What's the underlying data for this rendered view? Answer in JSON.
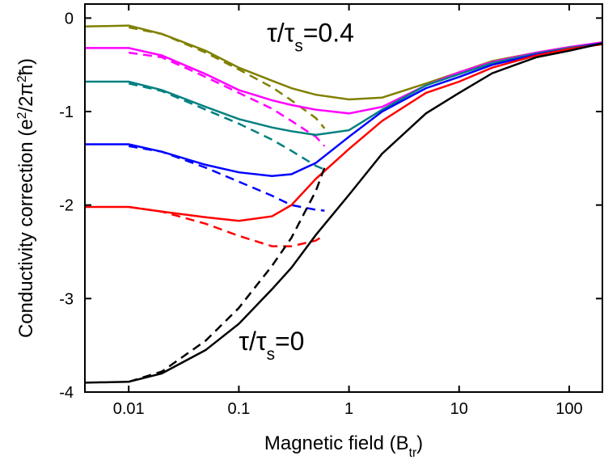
{
  "chart_data": {
    "type": "line",
    "xlabel": [
      {
        "text": "Magnetic field (B"
      },
      {
        "text": "tr",
        "sub": true
      },
      {
        "text": ")"
      }
    ],
    "ylabel": [
      {
        "text": "Conductivity correction (e"
      },
      {
        "text": "2",
        "sup": true
      },
      {
        "text": "/2π"
      },
      {
        "text": "2",
        "sup": true
      },
      {
        "text": "ħ)"
      }
    ],
    "annotations": [
      {
        "parts": [
          {
            "text": "τ/τ"
          },
          {
            "text": "s",
            "sub": true
          },
          {
            "text": "=0.4"
          }
        ],
        "x": 0.18,
        "y": -0.25
      },
      {
        "parts": [
          {
            "text": "τ/τ"
          },
          {
            "text": "s",
            "sub": true
          },
          {
            "text": "=0"
          }
        ],
        "x": 0.1,
        "y": -3.55
      }
    ],
    "xscale": "log",
    "xlim": [
      0.004,
      200
    ],
    "ylim": [
      -4,
      0.15
    ],
    "xticks": [
      0.01,
      0.1,
      1,
      10,
      100
    ],
    "yticks": [
      0,
      -1,
      -2,
      -3,
      -4
    ],
    "series": [
      {
        "color": "#808000",
        "dash": false,
        "x": [
          0.004,
          0.01,
          0.02,
          0.05,
          0.1,
          0.2,
          0.3,
          0.5,
          1,
          2,
          5,
          10,
          20,
          50,
          100,
          200
        ],
        "values": [
          -0.09,
          -0.08,
          -0.17,
          -0.35,
          -0.53,
          -0.67,
          -0.75,
          -0.82,
          -0.87,
          -0.85,
          -0.7,
          -0.58,
          -0.46,
          -0.37,
          -0.31,
          -0.26
        ]
      },
      {
        "color": "#808000",
        "dash": true,
        "x": [
          0.01,
          0.02,
          0.05,
          0.1,
          0.2,
          0.3,
          0.5,
          0.6
        ],
        "values": [
          -0.1,
          -0.17,
          -0.37,
          -0.55,
          -0.74,
          -0.88,
          -1.07,
          -1.18
        ]
      },
      {
        "color": "#ff00ff",
        "dash": false,
        "x": [
          0.004,
          0.01,
          0.02,
          0.05,
          0.1,
          0.2,
          0.3,
          0.5,
          1,
          2,
          5,
          10,
          20,
          50,
          100,
          200
        ],
        "values": [
          -0.32,
          -0.32,
          -0.4,
          -0.6,
          -0.77,
          -0.88,
          -0.93,
          -0.98,
          -1.02,
          -0.95,
          -0.72,
          -0.58,
          -0.47,
          -0.37,
          -0.31,
          -0.26
        ]
      },
      {
        "color": "#ff00ff",
        "dash": true,
        "x": [
          0.01,
          0.02,
          0.05,
          0.1,
          0.2,
          0.3,
          0.5,
          0.6
        ],
        "values": [
          -0.37,
          -0.42,
          -0.63,
          -0.8,
          -0.97,
          -1.1,
          -1.27,
          -1.37
        ]
      },
      {
        "color": "#008080",
        "dash": false,
        "x": [
          0.004,
          0.01,
          0.02,
          0.05,
          0.1,
          0.2,
          0.3,
          0.5,
          1,
          2,
          5,
          10,
          20,
          50,
          100,
          200
        ],
        "values": [
          -0.68,
          -0.68,
          -0.77,
          -0.95,
          -1.08,
          -1.17,
          -1.21,
          -1.25,
          -1.2,
          -0.98,
          -0.72,
          -0.6,
          -0.48,
          -0.38,
          -0.32,
          -0.27
        ]
      },
      {
        "color": "#008080",
        "dash": true,
        "x": [
          0.01,
          0.02,
          0.05,
          0.1,
          0.2,
          0.3,
          0.5,
          0.6
        ],
        "values": [
          -0.7,
          -0.78,
          -0.98,
          -1.13,
          -1.3,
          -1.42,
          -1.58,
          -1.62
        ]
      },
      {
        "color": "#0000ff",
        "dash": false,
        "x": [
          0.004,
          0.01,
          0.02,
          0.05,
          0.1,
          0.2,
          0.3,
          0.5,
          1,
          2,
          5,
          10,
          20,
          50,
          100,
          200
        ],
        "values": [
          -1.35,
          -1.35,
          -1.43,
          -1.57,
          -1.65,
          -1.69,
          -1.67,
          -1.55,
          -1.27,
          -1.0,
          -0.75,
          -0.63,
          -0.5,
          -0.39,
          -0.33,
          -0.27
        ]
      },
      {
        "color": "#0000ff",
        "dash": true,
        "x": [
          0.01,
          0.02,
          0.05,
          0.1,
          0.2,
          0.3,
          0.5,
          0.6
        ],
        "values": [
          -1.37,
          -1.43,
          -1.6,
          -1.75,
          -1.9,
          -2.0,
          -2.05,
          -2.06
        ]
      },
      {
        "color": "#ff0000",
        "dash": false,
        "x": [
          0.004,
          0.01,
          0.02,
          0.05,
          0.1,
          0.2,
          0.3,
          0.5,
          1,
          2,
          5,
          10,
          20,
          50,
          100,
          200
        ],
        "values": [
          -2.02,
          -2.02,
          -2.07,
          -2.13,
          -2.17,
          -2.12,
          -2.0,
          -1.72,
          -1.4,
          -1.1,
          -0.8,
          -0.68,
          -0.53,
          -0.4,
          -0.33,
          -0.28
        ]
      },
      {
        "color": "#ff0000",
        "dash": true,
        "x": [
          0.01,
          0.02,
          0.05,
          0.1,
          0.2,
          0.3,
          0.5,
          0.6
        ],
        "values": [
          -2.02,
          -2.07,
          -2.2,
          -2.33,
          -2.44,
          -2.44,
          -2.38,
          -2.32
        ]
      },
      {
        "color": "#000000",
        "dash": false,
        "x": [
          0.004,
          0.01,
          0.02,
          0.05,
          0.1,
          0.2,
          0.3,
          0.5,
          1,
          2,
          5,
          10,
          20,
          50,
          100,
          200
        ],
        "values": [
          -3.9,
          -3.89,
          -3.8,
          -3.55,
          -3.27,
          -2.9,
          -2.67,
          -2.32,
          -1.89,
          -1.45,
          -1.02,
          -0.8,
          -0.59,
          -0.42,
          -0.35,
          -0.27
        ]
      },
      {
        "color": "#000000",
        "dash": true,
        "x": [
          0.01,
          0.02,
          0.05,
          0.1,
          0.2,
          0.3,
          0.5,
          0.6
        ],
        "values": [
          -3.89,
          -3.78,
          -3.45,
          -3.1,
          -2.65,
          -2.35,
          -1.85,
          -1.6
        ]
      }
    ]
  }
}
